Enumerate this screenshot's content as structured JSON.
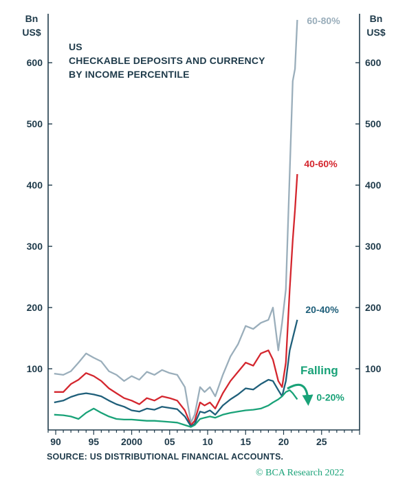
{
  "chart_data": {
    "type": "line",
    "title_lines": [
      "US",
      "CHECKABLE DEPOSITS AND CURRENCY",
      "BY INCOME PERCENTILE"
    ],
    "unit_left": [
      "Bn",
      "US$"
    ],
    "unit_right": [
      "Bn",
      "US$"
    ],
    "xlim": [
      1989,
      2030
    ],
    "ylim": [
      0,
      680
    ],
    "y_ticks": [
      100,
      200,
      300,
      400,
      500,
      600
    ],
    "x_ticks": [
      {
        "value": 1990,
        "label": "90"
      },
      {
        "value": 1995,
        "label": "95"
      },
      {
        "value": 2000,
        "label": "2000"
      },
      {
        "value": 2005,
        "label": "05"
      },
      {
        "value": 2010,
        "label": "10"
      },
      {
        "value": 2015,
        "label": "15"
      },
      {
        "value": 2020,
        "label": "20"
      },
      {
        "value": 2025,
        "label": "25"
      }
    ],
    "series": [
      {
        "name": "60-80%",
        "color": "#9aaebb",
        "points": [
          [
            1989.8,
            92
          ],
          [
            1991,
            90
          ],
          [
            1992,
            96
          ],
          [
            1993,
            110
          ],
          [
            1994,
            125
          ],
          [
            1995,
            118
          ],
          [
            1996,
            112
          ],
          [
            1997,
            96
          ],
          [
            1998,
            90
          ],
          [
            1999,
            80
          ],
          [
            2000,
            88
          ],
          [
            2001,
            82
          ],
          [
            2002,
            95
          ],
          [
            2003,
            90
          ],
          [
            2004,
            98
          ],
          [
            2005,
            93
          ],
          [
            2006,
            90
          ],
          [
            2007,
            70
          ],
          [
            2007.8,
            12
          ],
          [
            2008.3,
            25
          ],
          [
            2009,
            70
          ],
          [
            2009.6,
            62
          ],
          [
            2010.3,
            70
          ],
          [
            2011,
            55
          ],
          [
            2012,
            90
          ],
          [
            2013,
            120
          ],
          [
            2014,
            140
          ],
          [
            2015,
            170
          ],
          [
            2016,
            165
          ],
          [
            2017,
            175
          ],
          [
            2018,
            180
          ],
          [
            2018.6,
            200
          ],
          [
            2019.3,
            130
          ],
          [
            2019.8,
            175
          ],
          [
            2020.3,
            230
          ],
          [
            2020.8,
            420
          ],
          [
            2021.2,
            570
          ],
          [
            2021.5,
            590
          ],
          [
            2021.8,
            670
          ]
        ]
      },
      {
        "name": "40-60%",
        "color": "#d4262e",
        "points": [
          [
            1989.8,
            62
          ],
          [
            1991,
            62
          ],
          [
            1992,
            75
          ],
          [
            1993,
            82
          ],
          [
            1994,
            93
          ],
          [
            1995,
            88
          ],
          [
            1996,
            80
          ],
          [
            1997,
            68
          ],
          [
            1998,
            60
          ],
          [
            1999,
            52
          ],
          [
            2000,
            48
          ],
          [
            2001,
            42
          ],
          [
            2002,
            52
          ],
          [
            2003,
            48
          ],
          [
            2004,
            55
          ],
          [
            2005,
            52
          ],
          [
            2006,
            48
          ],
          [
            2007,
            32
          ],
          [
            2007.8,
            8
          ],
          [
            2008.3,
            15
          ],
          [
            2009,
            45
          ],
          [
            2009.6,
            40
          ],
          [
            2010.3,
            45
          ],
          [
            2011,
            35
          ],
          [
            2012,
            60
          ],
          [
            2013,
            80
          ],
          [
            2014,
            95
          ],
          [
            2015,
            110
          ],
          [
            2016,
            105
          ],
          [
            2017,
            125
          ],
          [
            2018,
            130
          ],
          [
            2018.6,
            115
          ],
          [
            2019.3,
            80
          ],
          [
            2019.8,
            70
          ],
          [
            2020.3,
            110
          ],
          [
            2020.8,
            230
          ],
          [
            2021.2,
            310
          ],
          [
            2021.5,
            360
          ],
          [
            2021.8,
            418
          ]
        ]
      },
      {
        "name": "20-40%",
        "color": "#1f5f7a",
        "points": [
          [
            1989.8,
            45
          ],
          [
            1991,
            48
          ],
          [
            1992,
            54
          ],
          [
            1993,
            58
          ],
          [
            1994,
            60
          ],
          [
            1995,
            58
          ],
          [
            1996,
            55
          ],
          [
            1997,
            48
          ],
          [
            1998,
            42
          ],
          [
            1999,
            38
          ],
          [
            2000,
            32
          ],
          [
            2001,
            30
          ],
          [
            2002,
            35
          ],
          [
            2003,
            33
          ],
          [
            2004,
            38
          ],
          [
            2005,
            36
          ],
          [
            2006,
            34
          ],
          [
            2007,
            22
          ],
          [
            2007.8,
            6
          ],
          [
            2008.3,
            10
          ],
          [
            2009,
            30
          ],
          [
            2009.6,
            28
          ],
          [
            2010.3,
            32
          ],
          [
            2011,
            25
          ],
          [
            2012,
            40
          ],
          [
            2013,
            50
          ],
          [
            2014,
            58
          ],
          [
            2015,
            68
          ],
          [
            2016,
            66
          ],
          [
            2017,
            75
          ],
          [
            2018,
            82
          ],
          [
            2018.6,
            80
          ],
          [
            2019.3,
            65
          ],
          [
            2019.8,
            55
          ],
          [
            2020.3,
            80
          ],
          [
            2020.8,
            130
          ],
          [
            2021.2,
            150
          ],
          [
            2021.5,
            165
          ],
          [
            2021.8,
            180
          ]
        ]
      },
      {
        "name": "0-20%",
        "color": "#19a278",
        "points": [
          [
            1989.8,
            25
          ],
          [
            1991,
            24
          ],
          [
            1992,
            22
          ],
          [
            1993,
            18
          ],
          [
            1994,
            28
          ],
          [
            1995,
            35
          ],
          [
            1996,
            28
          ],
          [
            1997,
            22
          ],
          [
            1998,
            18
          ],
          [
            1999,
            17
          ],
          [
            2000,
            17
          ],
          [
            2001,
            16
          ],
          [
            2002,
            15
          ],
          [
            2003,
            15
          ],
          [
            2004,
            14
          ],
          [
            2005,
            13
          ],
          [
            2006,
            12
          ],
          [
            2007,
            8
          ],
          [
            2007.8,
            5
          ],
          [
            2008.3,
            8
          ],
          [
            2009,
            18
          ],
          [
            2009.6,
            20
          ],
          [
            2010.3,
            22
          ],
          [
            2011,
            20
          ],
          [
            2012,
            25
          ],
          [
            2013,
            28
          ],
          [
            2014,
            30
          ],
          [
            2015,
            32
          ],
          [
            2016,
            33
          ],
          [
            2017,
            35
          ],
          [
            2018,
            40
          ],
          [
            2018.6,
            45
          ],
          [
            2019.3,
            50
          ],
          [
            2019.8,
            55
          ],
          [
            2020.3,
            62
          ],
          [
            2020.8,
            65
          ],
          [
            2021.2,
            60
          ],
          [
            2021.5,
            55
          ],
          [
            2021.8,
            50
          ]
        ]
      }
    ],
    "annotation": {
      "text": "Falling",
      "color": "#19a278"
    },
    "source": "SOURCE: US DISTRIBUTIONAL FINANCIAL ACCOUNTS.",
    "copyright": "© BCA Research 2022"
  }
}
